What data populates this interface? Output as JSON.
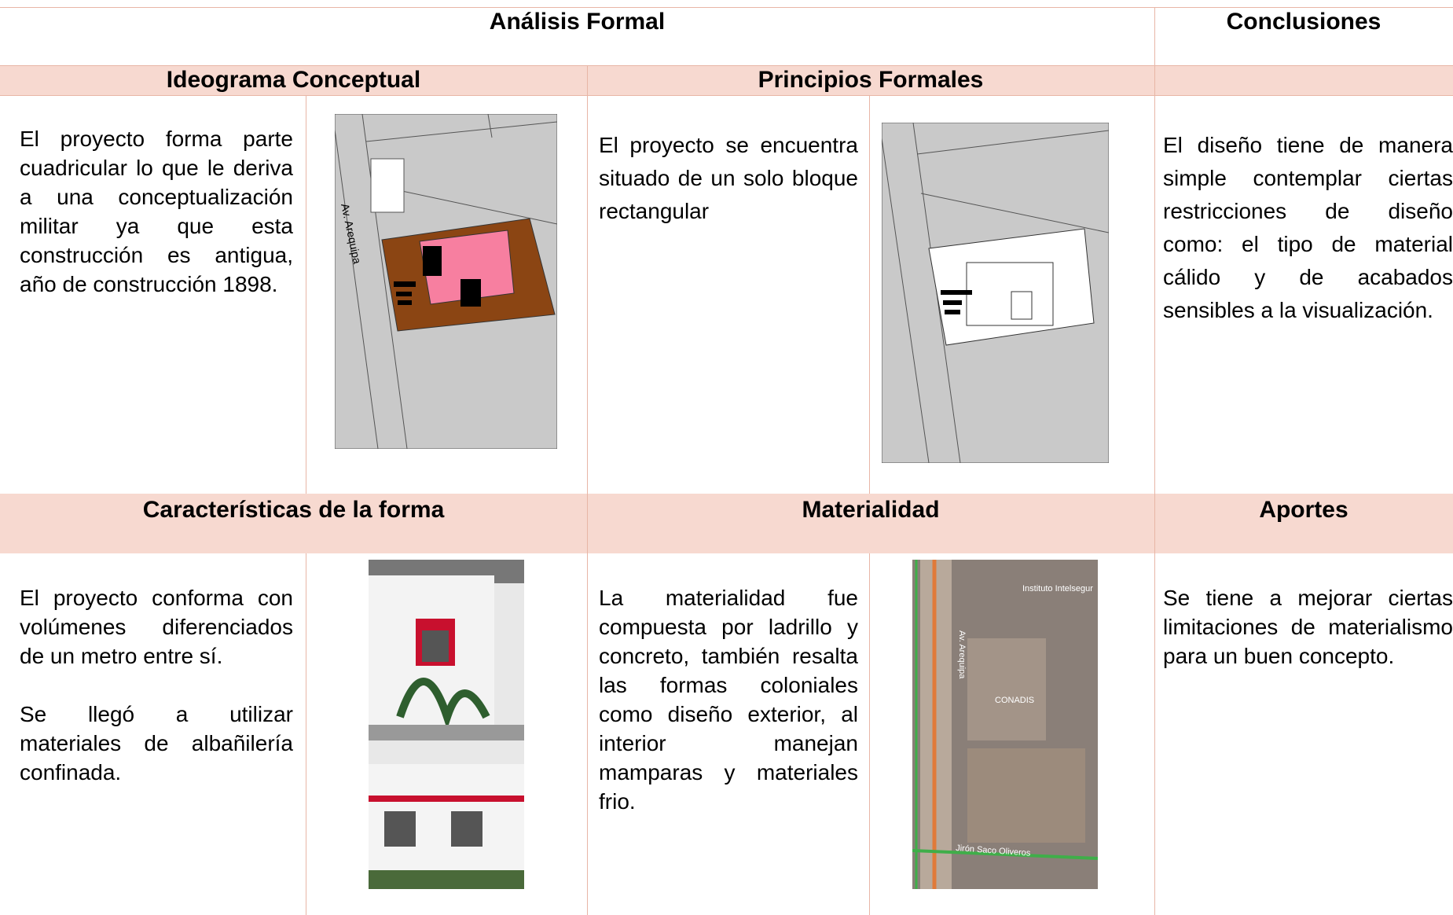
{
  "header": {
    "left": "Análisis Formal",
    "right": "Conclusiones"
  },
  "ideograma": {
    "title": "Ideograma Conceptual",
    "text": "El proyecto forma parte cuadricular lo que le deriva a una conceptualización militar ya que esta construcción es antigua, año de construcción 1898.",
    "image_label": "Av. Arequipa"
  },
  "principios": {
    "title": "Principios Formales",
    "text": "El proyecto se encuentra situado de un solo bloque rectangular"
  },
  "conclusiones": {
    "text": "El diseño tiene de manera simple contemplar ciertas restricciones de diseño como: el tipo de material cálido y de acabados sensibles a la visualización."
  },
  "caracteristicas": {
    "title": "Características de la forma",
    "paragraphs": [
      "El proyecto conforma con volúmenes diferenciados de un metro entre sí.",
      "Se llegó a utilizar materiales de albañilería confinada."
    ]
  },
  "materialidad": {
    "title": "Materialidad",
    "text": "La materialidad fue compuesta por ladrillo y concreto, también resalta las formas coloniales como diseño exterior, al interior manejan mamparas y materiales frio.",
    "map_labels": [
      "Av. Arequipa",
      "Jirón Saco Oliveros",
      "Instituto Intelsegur",
      "CONADIS"
    ]
  },
  "aportes": {
    "title": "Aportes",
    "text": "Se tiene a mejorar ciertas limitaciones de materialismo para un buen concepto."
  }
}
